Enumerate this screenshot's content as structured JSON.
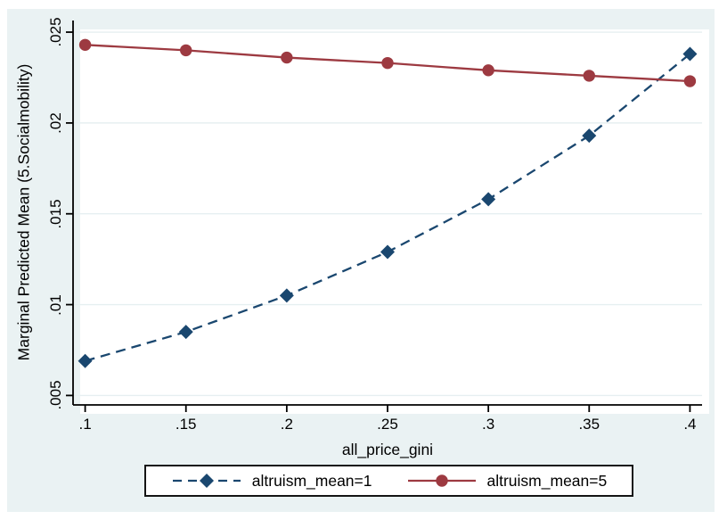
{
  "chart_data": {
    "type": "line",
    "title": "",
    "xlabel": "all_price_gini",
    "ylabel": "Marginal Predicted Mean (5.Socialmobility)",
    "x": [
      0.1,
      0.15,
      0.2,
      0.25,
      0.3,
      0.35,
      0.4
    ],
    "x_tick_labels": [
      ".1",
      ".15",
      ".2",
      ".25",
      ".3",
      ".35",
      ".4"
    ],
    "y_ticks": [
      0.005,
      0.01,
      0.015,
      0.02,
      0.025
    ],
    "y_tick_labels": [
      ".005",
      ".01",
      ".015",
      ".02",
      ".025"
    ],
    "xlim": [
      0.094,
      0.406
    ],
    "ylim": [
      0.00448,
      0.02564
    ],
    "grid": true,
    "legend_position": "bottom",
    "series": [
      {
        "name": "altruism_mean=1",
        "color": "#1a476f",
        "line_style": "dashed",
        "marker": "diamond",
        "values": [
          0.0069,
          0.0085,
          0.0105,
          0.0129,
          0.0158,
          0.0193,
          0.0238
        ]
      },
      {
        "name": "altruism_mean=5",
        "color": "#9d3a41",
        "line_style": "solid",
        "marker": "circle",
        "values": [
          0.0243,
          0.024,
          0.0236,
          0.0233,
          0.0229,
          0.0226,
          0.0223
        ]
      }
    ],
    "colors": {
      "canvas_bg": "#eaf2f3",
      "plot_bg": "#ffffff",
      "grid": "#e6eff1",
      "axis": "#000000",
      "text": "#000000"
    }
  }
}
